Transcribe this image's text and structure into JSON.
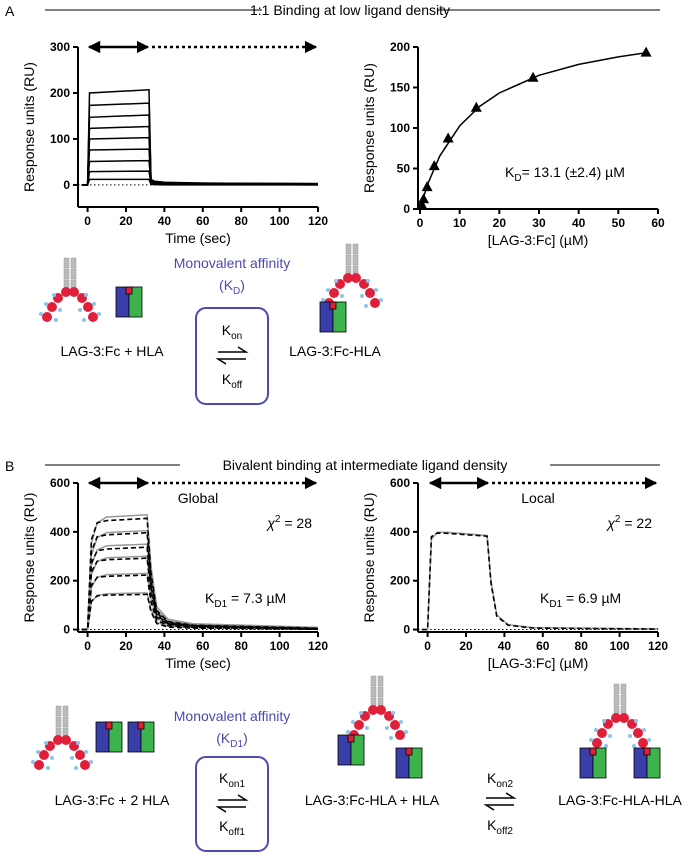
{
  "figure": {
    "panel_a": {
      "label": "A",
      "header": "1:1 Binding at low ligand density",
      "left_species": "LAG-3:Fc + HLA",
      "affinity": {
        "title": "Monovalent affinity",
        "open": "(K",
        "sub": "D",
        "close": ")"
      },
      "kon": {
        "main": "K",
        "sub": "on"
      },
      "koff": {
        "main": "K",
        "sub": "off"
      },
      "right_species": "LAG-3:Fc-HLA"
    },
    "panel_b": {
      "label": "B",
      "header": "Bivalent binding at intermediate ligand density",
      "left_species": "LAG-3:Fc + 2 HLA",
      "affinity": {
        "title": "Monovalent affinity",
        "open": "(K",
        "sub": "D1",
        "close": ")"
      },
      "kon1": {
        "main": "K",
        "sub": "on1"
      },
      "koff1": {
        "main": "K",
        "sub": "off1"
      },
      "middle_species": "LAG-3:Fc-HLA + HLA",
      "kon2": {
        "main": "K",
        "sub": "on2"
      },
      "koff2": {
        "main": "K",
        "sub": "off2"
      },
      "right_species": "LAG-3:Fc-HLA-HLA"
    }
  },
  "chart_data": [
    {
      "type": "line",
      "x_label": "Time (sec)",
      "y_label": "Response units (RU)",
      "xlim": [
        -5,
        120
      ],
      "xticks": [
        0,
        20,
        40,
        60,
        80,
        100,
        120
      ],
      "ylim": [
        -48,
        300
      ],
      "yticks": [
        0,
        100,
        200,
        300
      ],
      "zero_line": true,
      "x": [
        -3,
        0,
        1,
        32,
        33,
        35,
        40,
        60,
        120
      ],
      "series": [
        {
          "color": "#000000",
          "values": [
            0,
            0,
            200,
            207,
            12,
            8,
            6,
            4,
            3
          ]
        },
        {
          "color": "#000000",
          "values": [
            0,
            0,
            173,
            178,
            11,
            7,
            5,
            4,
            3
          ]
        },
        {
          "color": "#000000",
          "values": [
            0,
            0,
            147,
            152,
            9,
            6,
            5,
            3,
            2
          ]
        },
        {
          "color": "#000000",
          "values": [
            0,
            0,
            123,
            127,
            8,
            5,
            4,
            3,
            2
          ]
        },
        {
          "color": "#000000",
          "values": [
            0,
            0,
            100,
            103,
            6,
            4,
            3,
            2,
            2
          ]
        },
        {
          "color": "#000000",
          "values": [
            0,
            0,
            76,
            78,
            5,
            3,
            2,
            2,
            1
          ]
        },
        {
          "color": "#000000",
          "values": [
            0,
            0,
            51,
            53,
            3,
            2,
            2,
            1,
            1
          ]
        },
        {
          "color": "#000000",
          "values": [
            0,
            0,
            29,
            30,
            2,
            1,
            1,
            1,
            0
          ]
        },
        {
          "color": "#000000",
          "values": [
            0,
            0,
            12,
            12,
            1,
            1,
            0,
            0,
            0
          ]
        }
      ]
    },
    {
      "type": "scatter",
      "x_label": "[LAG-3:Fc] (µM)",
      "y_label": "Response units (RU)",
      "xlim": [
        -0.5,
        60
      ],
      "xticks": [
        0,
        10,
        20,
        30,
        40,
        50,
        60
      ],
      "ylim": [
        0,
        200
      ],
      "yticks": [
        0,
        50,
        100,
        150,
        200
      ],
      "color": "#000000",
      "x": [
        0.45,
        0.9,
        1.8,
        3.6,
        7.1,
        14.2,
        28.5,
        57
      ],
      "values": [
        5,
        12,
        27,
        53,
        87,
        125,
        162,
        193
      ],
      "fit": {
        "x": [
          0,
          0.5,
          2,
          5,
          10,
          15,
          20,
          30,
          40,
          50,
          57
        ],
        "values": [
          0,
          8.7,
          31.4,
          65.5,
          102.6,
          126.5,
          143.2,
          165.0,
          178.5,
          187.8,
          193.0
        ]
      },
      "kd_label": {
        "main": "K",
        "sub": "D",
        "text": "= 13.1 (±2.4) µM"
      }
    },
    {
      "type": "line",
      "title": "Global",
      "x_label": "Time (sec)",
      "y_label": "Response units (RU)",
      "xlim": [
        -5,
        120
      ],
      "xticks": [
        0,
        20,
        40,
        60,
        80,
        100,
        120
      ],
      "ylim": [
        -10,
        600
      ],
      "yticks": [
        0,
        200,
        400,
        600
      ],
      "zero_line": true,
      "x": [
        -3,
        0,
        2,
        5,
        10,
        31,
        33,
        36,
        42,
        55,
        120
      ],
      "series": [
        {
          "color": "#999999",
          "values": [
            0,
            0,
            353,
            437,
            461,
            470,
            259,
            94,
            42,
            24,
            9
          ]
        },
        {
          "color": "#999999",
          "values": [
            0,
            0,
            304,
            377,
            397,
            405,
            223,
            81,
            36,
            20,
            8
          ]
        },
        {
          "color": "#999999",
          "values": [
            0,
            0,
            263,
            326,
            343,
            350,
            193,
            70,
            32,
            18,
            7
          ]
        },
        {
          "color": "#999999",
          "values": [
            0,
            0,
            225,
            279,
            294,
            300,
            165,
            60,
            27,
            15,
            6
          ]
        },
        {
          "color": "#999999",
          "values": [
            0,
            0,
            173,
            214,
            225,
            230,
            127,
            46,
            21,
            12,
            5
          ]
        },
        {
          "color": "#999999",
          "values": [
            0,
            0,
            113,
            140,
            147,
            150,
            83,
            30,
            14,
            8,
            3
          ]
        },
        {
          "color": "#000000",
          "dashed": true,
          "values": [
            0,
            0,
            368,
            437,
            446,
            455,
            230,
            78,
            32,
            18,
            5
          ]
        },
        {
          "color": "#000000",
          "dashed": true,
          "values": [
            0,
            0,
            320,
            380,
            388,
            396,
            200,
            68,
            28,
            16,
            4
          ]
        },
        {
          "color": "#000000",
          "dashed": true,
          "values": [
            0,
            0,
            272,
            323,
            330,
            337,
            170,
            58,
            24,
            14,
            3
          ]
        },
        {
          "color": "#000000",
          "dashed": true,
          "values": [
            0,
            0,
            236,
            280,
            286,
            292,
            148,
            50,
            21,
            12,
            3
          ]
        },
        {
          "color": "#000000",
          "dashed": true,
          "values": [
            0,
            0,
            180,
            214,
            218,
            223,
            113,
            38,
            16,
            9,
            2
          ]
        },
        {
          "color": "#000000",
          "dashed": true,
          "values": [
            0,
            0,
            116,
            138,
            141,
            144,
            73,
            25,
            10,
            6,
            1
          ]
        }
      ],
      "chi2_label": {
        "main": "χ",
        "sup": "2",
        "text": " = 28"
      },
      "kd_label": {
        "main": "K",
        "sub": "D1",
        "text": " = 7.3 µM"
      }
    },
    {
      "type": "line",
      "title": "Local",
      "x_label": "[LAG-3:Fc] (µM)",
      "y_label": "Response units (RU)",
      "xlim": [
        -5,
        120
      ],
      "xticks": [
        0,
        20,
        40,
        60,
        80,
        100,
        120
      ],
      "ylim": [
        -10,
        600
      ],
      "yticks": [
        0,
        200,
        400,
        600
      ],
      "zero_line": true,
      "x": [
        -3,
        0,
        2,
        5,
        10,
        31,
        33,
        36,
        42,
        55,
        120
      ],
      "series": [
        {
          "color": "#999999",
          "values": [
            0,
            0,
            370,
            398,
            398,
            385,
            200,
            60,
            20,
            8,
            3
          ]
        },
        {
          "color": "#000000",
          "dashed": true,
          "values": [
            0,
            0,
            380,
            395,
            394,
            382,
            190,
            55,
            18,
            6,
            2
          ]
        }
      ],
      "chi2_label": {
        "main": "χ",
        "sup": "2",
        "text": " = 22"
      },
      "kd_label": {
        "main": "K",
        "sub": "D1",
        "text": " = 6.9 µM"
      }
    }
  ]
}
